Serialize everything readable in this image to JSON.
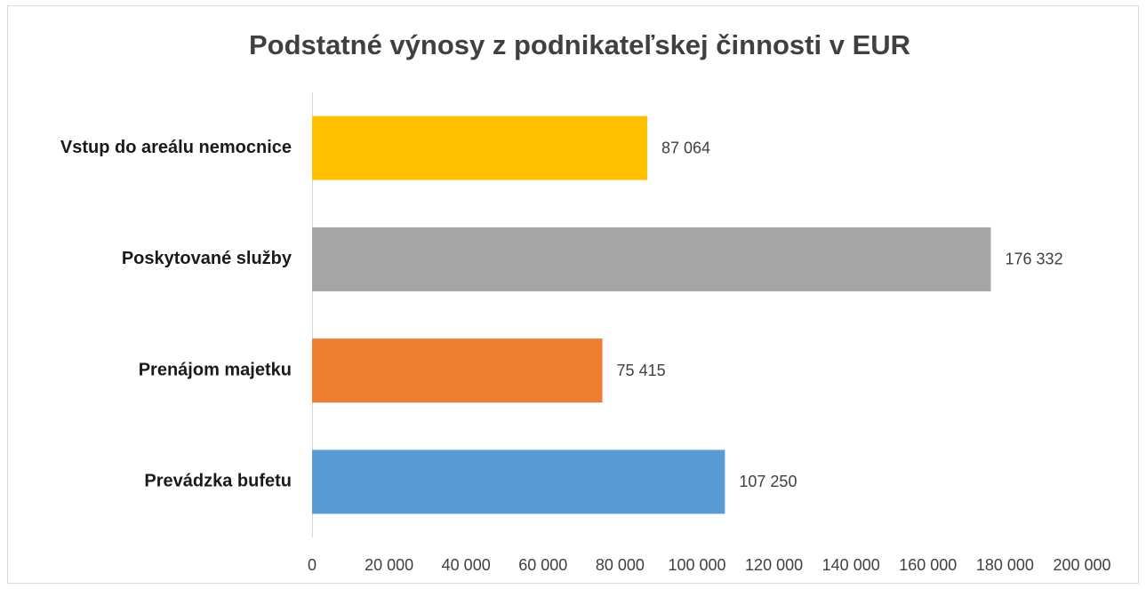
{
  "chart_data": {
    "type": "bar",
    "orientation": "horizontal",
    "title": "Podstatné výnosy z podnikateľskej činnosti v EUR",
    "categories": [
      "Vstup do areálu nemocnice",
      "Poskytované služby",
      "Prenájom majetku",
      "Prevádzka bufetu"
    ],
    "values": [
      87064,
      176332,
      75415,
      107250
    ],
    "value_labels": [
      "87 064",
      "176 332",
      "75 415",
      "107 250"
    ],
    "colors": [
      "#ffc000",
      "#a5a5a5",
      "#ed7d31",
      "#5b9bd5"
    ],
    "xlim": [
      0,
      200000
    ],
    "xticks": [
      0,
      {
        "value": 20000,
        "label": "20 000"
      },
      {
        "value": 40000,
        "label": "40 000"
      },
      {
        "value": 60000,
        "label": "60 000"
      },
      {
        "value": 80000,
        "label": "80 000"
      },
      {
        "value": 100000,
        "label": "100 000"
      },
      {
        "value": 120000,
        "label": "120 000"
      },
      {
        "value": 140000,
        "label": "140 000"
      },
      {
        "value": 160000,
        "label": "160 000"
      },
      {
        "value": 180000,
        "label": "180 000"
      },
      {
        "value": 200000,
        "label": "200 000"
      }
    ],
    "grid": false
  }
}
